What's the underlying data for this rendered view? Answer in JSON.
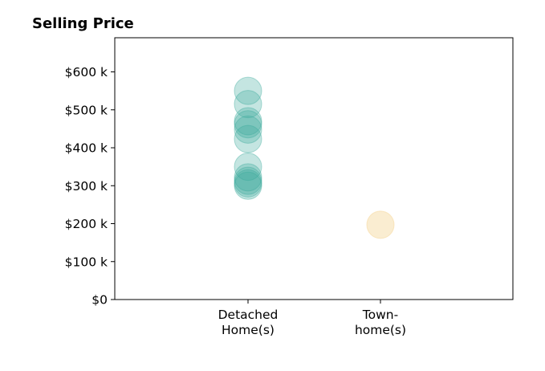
{
  "chart_data": {
    "type": "scatter",
    "title": "Selling Price",
    "xlabel": "",
    "ylabel": "",
    "categories": [
      [
        "Detached",
        "Home(s)"
      ],
      [
        "Town-",
        "home(s)"
      ]
    ],
    "ylim": [
      0,
      690000
    ],
    "yticks": [
      0,
      100000,
      200000,
      300000,
      400000,
      500000,
      600000
    ],
    "ytick_labels": [
      "$0",
      "$100 k",
      "$200 k",
      "$300 k",
      "$400 k",
      "$500 k",
      "$600 k"
    ],
    "grid": false,
    "series": [
      {
        "category_index": 0,
        "color": "#3aa99a",
        "alpha": 0.3,
        "values": [
          550000,
          515000,
          470000,
          462000,
          448000,
          423000,
          350000,
          322000,
          313000,
          306000,
          300000
        ]
      },
      {
        "category_index": 1,
        "color": "#f5d79a",
        "alpha": 0.45,
        "values": [
          197000
        ]
      }
    ]
  }
}
